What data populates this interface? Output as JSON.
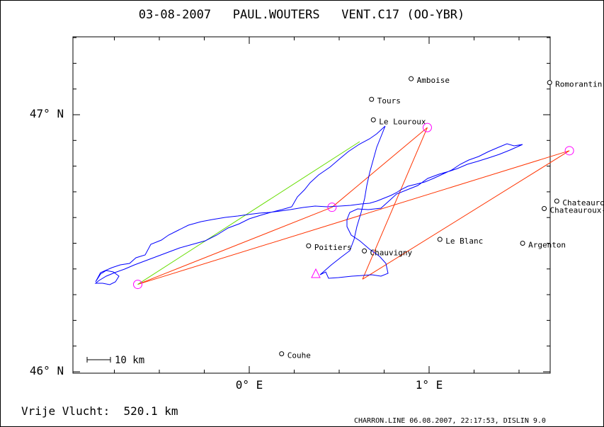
{
  "header": {
    "title": "03-08-2007   PAUL.WOUTERS   VENT.C17 (OO-YBR)"
  },
  "axes": {
    "y_ticks": [
      {
        "label": "47° N"
      },
      {
        "label": "46° N"
      }
    ],
    "x_ticks": [
      {
        "label": "0° E"
      },
      {
        "label": "1° E"
      }
    ]
  },
  "scale_bar": {
    "label": "10 km"
  },
  "footer": {
    "distance": "Vrije Vlucht:  520.1 km",
    "credits": "CHARRON.LINE 06.08.2007, 22:17:53, DISLIN 9.0"
  },
  "towns": [
    {
      "name": "Amboise",
      "lon": 0.9,
      "lat": 47.14
    },
    {
      "name": "Tours",
      "lon": 0.68,
      "lat": 47.06
    },
    {
      "name": "Romorantin",
      "lon": 1.67,
      "lat": 47.125
    },
    {
      "name": "Le Louroux",
      "lon": 0.69,
      "lat": 46.98
    },
    {
      "name": "Chateauroux-Deols",
      "lon": 1.71,
      "lat": 46.664
    },
    {
      "name": "Chateauroux-Villers",
      "lon": 1.64,
      "lat": 46.635
    },
    {
      "name": "Poitiers",
      "lon": 0.33,
      "lat": 46.49
    },
    {
      "name": "Le Blanc",
      "lon": 1.06,
      "lat": 46.515
    },
    {
      "name": "Chauvigny",
      "lon": 0.64,
      "lat": 46.47
    },
    {
      "name": "Argenton",
      "lon": 1.52,
      "lat": 46.5
    },
    {
      "name": "Couhe",
      "lon": 0.18,
      "lat": 46.07
    }
  ],
  "turnpoints": [
    {
      "lon": -0.62,
      "lat": 46.34
    },
    {
      "lon": 0.46,
      "lat": 46.64
    },
    {
      "lon": 0.99,
      "lat": 46.95
    },
    {
      "lon": 1.78,
      "lat": 46.86
    },
    {
      "lon": 0.63,
      "lat": 46.36
    }
  ],
  "colors": {
    "track": "#0000ff",
    "legs": "#ff3300",
    "closing_leg": "#66dd00",
    "turnpoint": "#ff00ff",
    "frame": "#000000"
  }
}
